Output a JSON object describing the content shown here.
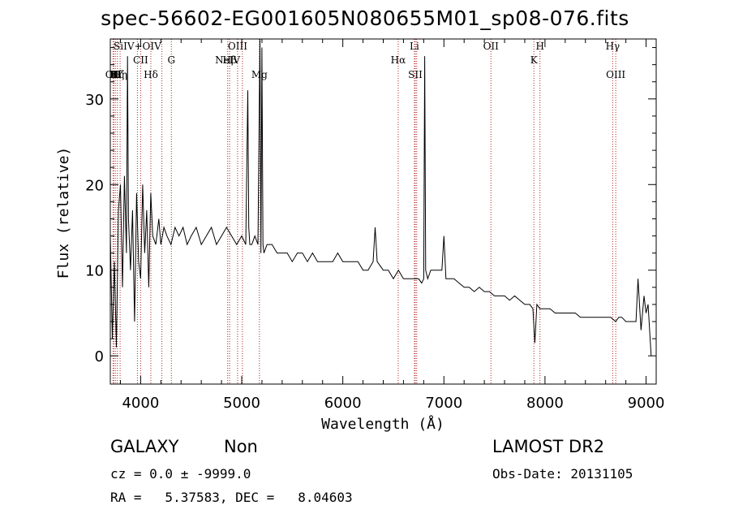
{
  "title": "spec-56602-EG001605N080655M01_sp08-076.fits",
  "info": {
    "class_label": "GALAXY",
    "subclass_label": "Non",
    "cz_line": "cz = 0.0 ± -9999.0",
    "radec_line": "RA =   5.37583, DEC =   8.04603",
    "survey": "LAMOST DR2",
    "obs_date": "Obs-Date: 20131105"
  },
  "chart_data": {
    "type": "line",
    "title": "spec-56602-EG001605N080655M01_sp08-076.fits",
    "xlabel": "Wavelength (Å)",
    "ylabel": "Flux (relative)",
    "xlim": [
      3700,
      9100
    ],
    "ylim": [
      -3.3,
      37
    ],
    "xticks": [
      4000,
      5000,
      6000,
      7000,
      8000,
      9000
    ],
    "yticks": [
      0,
      10,
      20,
      30
    ],
    "grid": false,
    "line_color": "#000000",
    "marker_color": "#b22222",
    "series": [
      {
        "name": "",
        "x": [
          3700,
          3720,
          3740,
          3760,
          3780,
          3800,
          3820,
          3840,
          3860,
          3870,
          3880,
          3900,
          3920,
          3940,
          3960,
          3980,
          4000,
          4020,
          4040,
          4060,
          4080,
          4100,
          4120,
          4150,
          4180,
          4200,
          4230,
          4260,
          4300,
          4340,
          4380,
          4420,
          4460,
          4500,
          4550,
          4600,
          4650,
          4700,
          4750,
          4800,
          4850,
          4900,
          4950,
          5000,
          5040,
          5060,
          5070,
          5080,
          5100,
          5130,
          5160,
          5180,
          5190,
          5200,
          5210,
          5220,
          5250,
          5300,
          5350,
          5400,
          5450,
          5500,
          5550,
          5600,
          5650,
          5700,
          5750,
          5800,
          5850,
          5900,
          5950,
          6000,
          6050,
          6100,
          6150,
          6200,
          6250,
          6300,
          6320,
          6340,
          6400,
          6450,
          6500,
          6550,
          6600,
          6650,
          6700,
          6750,
          6780,
          6800,
          6810,
          6820,
          6840,
          6870,
          6900,
          6950,
          6980,
          7000,
          7020,
          7050,
          7100,
          7150,
          7200,
          7250,
          7300,
          7350,
          7400,
          7450,
          7500,
          7550,
          7600,
          7650,
          7700,
          7750,
          7800,
          7850,
          7880,
          7900,
          7920,
          7950,
          8000,
          8050,
          8100,
          8150,
          8200,
          8250,
          8300,
          8350,
          8400,
          8450,
          8500,
          8550,
          8600,
          8650,
          8700,
          8730,
          8760,
          8800,
          8850,
          8900,
          8920,
          8950,
          8980,
          9000,
          9020,
          9050
        ],
        "y": [
          14,
          2,
          11,
          1,
          17,
          20,
          8,
          21,
          12,
          35,
          16,
          10,
          17,
          4,
          19,
          11,
          9,
          20,
          12,
          17,
          8,
          19,
          14,
          13,
          16,
          13,
          15,
          14,
          13,
          15,
          14,
          15,
          13,
          14,
          15,
          13,
          14,
          15,
          13,
          14,
          15,
          14,
          13,
          14,
          13,
          31,
          15,
          13,
          13,
          14,
          13,
          37,
          12,
          36,
          13,
          12,
          13,
          13,
          12,
          12,
          12,
          11,
          12,
          12,
          11,
          12,
          11,
          11,
          11,
          11,
          12,
          11,
          11,
          11,
          11,
          10,
          10,
          11,
          15,
          11,
          10,
          10,
          9,
          10,
          9,
          9,
          9,
          9,
          8.5,
          9,
          35,
          10,
          9,
          10,
          10,
          10,
          10,
          14,
          9,
          9,
          9,
          8.5,
          8,
          8,
          7.5,
          8,
          7.5,
          7.5,
          7,
          7,
          7,
          6.5,
          7,
          6.5,
          6,
          6,
          5.5,
          1.5,
          6,
          5.5,
          5.5,
          5.5,
          5,
          5,
          5,
          5,
          5,
          4.5,
          4.5,
          4.5,
          4.5,
          4.5,
          4.5,
          4.5,
          4,
          4.5,
          4.5,
          4,
          4,
          4,
          9,
          3,
          7,
          5,
          6,
          0
        ]
      }
    ],
    "line_markers": [
      {
        "x": 3727,
        "label": "OII",
        "pos": "top3"
      },
      {
        "x": 3734,
        "label": "H",
        "pos": "top3"
      },
      {
        "x": 3750,
        "label": "K",
        "pos": "top3"
      },
      {
        "x": 3770,
        "label": "Hζ",
        "pos": "top3"
      },
      {
        "x": 3797,
        "label": "Hη",
        "pos": "top3"
      },
      {
        "x": 3968,
        "label": "SiIV+OIV",
        "pos": "top1"
      },
      {
        "x": 4000,
        "label": "CII",
        "pos": "top2"
      },
      {
        "x": 4101,
        "label": "Hδ",
        "pos": "top3"
      },
      {
        "x": 4210,
        "label": "",
        "pos": "none"
      },
      {
        "x": 4304,
        "label": "G",
        "pos": "top2"
      },
      {
        "x": 4861,
        "label": "NeIV",
        "pos": "top2"
      },
      {
        "x": 4880,
        "label": "Hβ",
        "pos": "top2"
      },
      {
        "x": 4959,
        "label": "OIII",
        "pos": "top1"
      },
      {
        "x": 5007,
        "label": "",
        "pos": "none"
      },
      {
        "x": 5175,
        "label": "Mg",
        "pos": "top3"
      },
      {
        "x": 6548,
        "label": "Hα",
        "pos": "top2"
      },
      {
        "x": 6708,
        "label": "Li",
        "pos": "top1"
      },
      {
        "x": 6717,
        "label": "SII",
        "pos": "top3"
      },
      {
        "x": 6731,
        "label": "",
        "pos": "none"
      },
      {
        "x": 7465,
        "label": "OII",
        "pos": "top1"
      },
      {
        "x": 7890,
        "label": "K",
        "pos": "top2"
      },
      {
        "x": 7950,
        "label": "H",
        "pos": "top1"
      },
      {
        "x": 8670,
        "label": "Hγ",
        "pos": "top1"
      },
      {
        "x": 8700,
        "label": "OIII",
        "pos": "top3"
      }
    ]
  }
}
